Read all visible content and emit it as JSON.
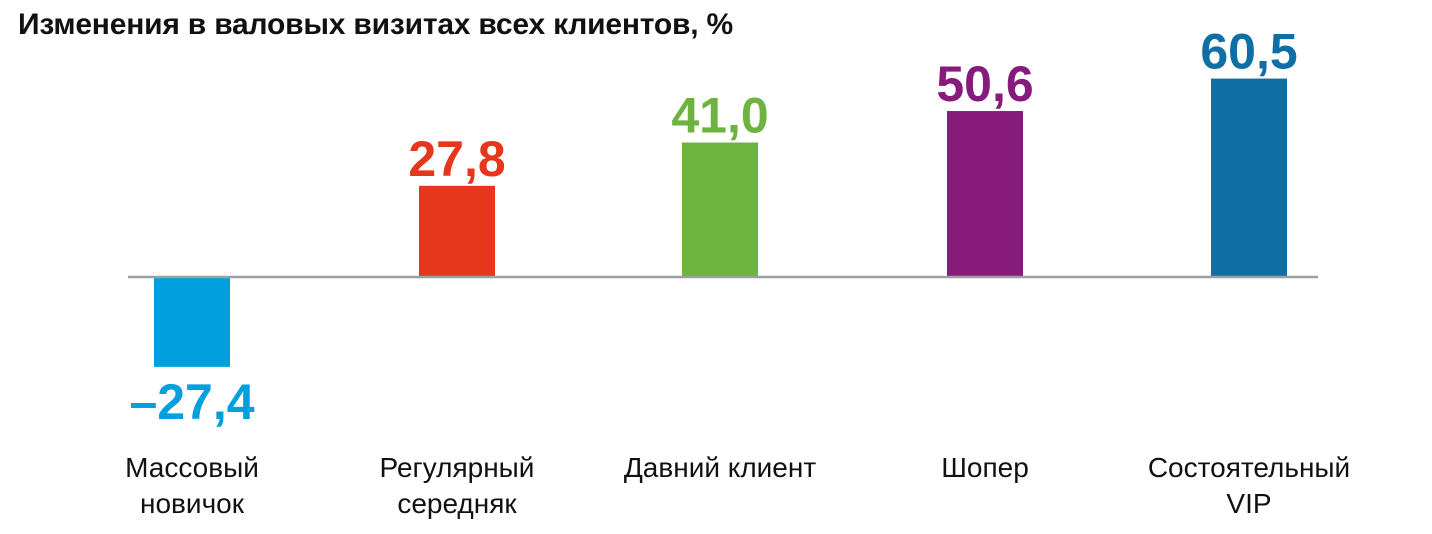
{
  "chart_data": {
    "type": "bar",
    "title": "Изменения в валовых визитах всех клиентов, %",
    "xlabel": "",
    "ylabel": "",
    "categories": [
      [
        "Массовый",
        "новичок"
      ],
      [
        "Регулярный",
        "середняк"
      ],
      [
        "Давний клиент"
      ],
      [
        "Шопер"
      ],
      [
        "Состоятельный",
        "VIP"
      ]
    ],
    "values": [
      -27.4,
      27.8,
      41.0,
      50.6,
      60.5
    ],
    "value_labels": [
      "–27,4",
      "27,8",
      "41,0",
      "50,6",
      "60,5"
    ],
    "colors": [
      "#00a0df",
      "#e6361b",
      "#6db33f",
      "#861b7c",
      "#0f6fa5"
    ],
    "baseline_color": "#9aa0a6",
    "grid": false,
    "legend": "none"
  }
}
